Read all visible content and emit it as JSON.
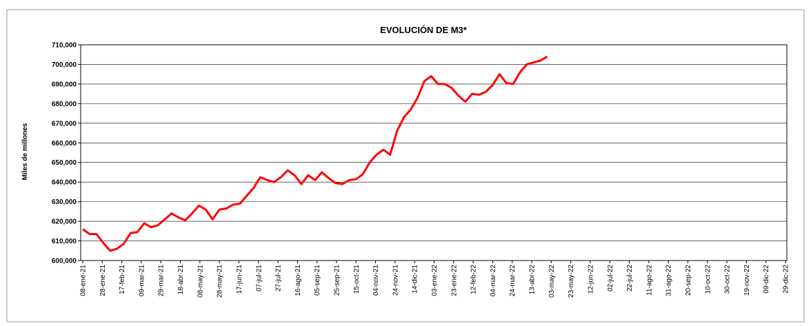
{
  "chart_data": {
    "type": "line",
    "title": "EVOLUCIÓN  DE M3*",
    "y_label": "Miles de millones",
    "x": [
      "2021-01-08",
      "2021-01-15",
      "2021-01-22",
      "2021-01-29",
      "2021-02-05",
      "2021-02-12",
      "2021-02-19",
      "2021-02-26",
      "2021-03-05",
      "2021-03-12",
      "2021-03-19",
      "2021-03-26",
      "2021-04-02",
      "2021-04-09",
      "2021-04-16",
      "2021-04-23",
      "2021-04-30",
      "2021-05-07",
      "2021-05-14",
      "2021-05-21",
      "2021-05-28",
      "2021-06-04",
      "2021-06-11",
      "2021-06-18",
      "2021-06-25",
      "2021-07-02",
      "2021-07-09",
      "2021-07-16",
      "2021-07-23",
      "2021-07-30",
      "2021-08-06",
      "2021-08-13",
      "2021-08-20",
      "2021-08-27",
      "2021-09-03",
      "2021-09-10",
      "2021-09-17",
      "2021-09-24",
      "2021-10-01",
      "2021-10-08",
      "2021-10-15",
      "2021-10-22",
      "2021-10-29",
      "2021-11-05",
      "2021-11-12",
      "2021-11-19",
      "2021-11-26",
      "2021-12-03",
      "2021-12-10",
      "2021-12-17",
      "2021-12-24",
      "2021-12-31",
      "2022-01-07",
      "2022-01-14",
      "2022-01-21",
      "2022-01-28",
      "2022-02-04",
      "2022-02-11",
      "2022-02-18",
      "2022-02-25",
      "2022-03-04",
      "2022-03-11",
      "2022-03-18",
      "2022-03-25",
      "2022-04-01",
      "2022-04-08",
      "2022-04-15",
      "2022-04-22",
      "2022-04-29"
    ],
    "series": [
      {
        "name": "M3",
        "color": "#ff0000",
        "values": [
          616000,
          613500,
          613500,
          609000,
          605000,
          606000,
          608500,
          614000,
          614500,
          619000,
          617000,
          618000,
          621000,
          624000,
          622000,
          620500,
          624000,
          628000,
          626000,
          621000,
          626000,
          626500,
          628500,
          629000,
          633000,
          637000,
          642500,
          641000,
          640000,
          642500,
          646000,
          643500,
          639000,
          643500,
          641000,
          645000,
          642000,
          639500,
          639000,
          641000,
          641500,
          644000,
          650000,
          654000,
          656500,
          654000,
          666000,
          673000,
          677000,
          683000,
          691500,
          694000,
          690000,
          690000,
          688000,
          684000,
          681000,
          685000,
          684500,
          686000,
          689500,
          695000,
          690500,
          690000,
          696000,
          700000,
          701000,
          702000,
          704000
        ]
      }
    ],
    "xlim": [
      "2021-01-08",
      "2022-12-29"
    ],
    "xticks": [
      {
        "value": "2021-01-08",
        "label": "08-ene-21"
      },
      {
        "value": "2021-01-28",
        "label": "28-ene-21"
      },
      {
        "value": "2021-02-17",
        "label": "17-feb-21"
      },
      {
        "value": "2021-03-09",
        "label": "09-mar-21"
      },
      {
        "value": "2021-03-29",
        "label": "29-mar-21"
      },
      {
        "value": "2021-04-18",
        "label": "18-abr-21"
      },
      {
        "value": "2021-05-08",
        "label": "08-may-21"
      },
      {
        "value": "2021-05-28",
        "label": "28-may-21"
      },
      {
        "value": "2021-06-17",
        "label": "17-jun-21"
      },
      {
        "value": "2021-07-07",
        "label": "07-jul-21"
      },
      {
        "value": "2021-07-27",
        "label": "27-jul-21"
      },
      {
        "value": "2021-08-16",
        "label": "16-ago-21"
      },
      {
        "value": "2021-09-05",
        "label": "05-sep-21"
      },
      {
        "value": "2021-09-25",
        "label": "25-sep-21"
      },
      {
        "value": "2021-10-15",
        "label": "15-oct-21"
      },
      {
        "value": "2021-11-04",
        "label": "04-nov-21"
      },
      {
        "value": "2021-11-24",
        "label": "24-nov-21"
      },
      {
        "value": "2021-12-14",
        "label": "14-dic-21"
      },
      {
        "value": "2022-01-03",
        "label": "03-ene-22"
      },
      {
        "value": "2022-01-23",
        "label": "23-ene-22"
      },
      {
        "value": "2022-02-12",
        "label": "12-feb-22"
      },
      {
        "value": "2022-03-04",
        "label": "04-mar-22"
      },
      {
        "value": "2022-03-24",
        "label": "24-mar-22"
      },
      {
        "value": "2022-04-13",
        "label": "13-abr-22"
      },
      {
        "value": "2022-05-03",
        "label": "03-may-22"
      },
      {
        "value": "2022-05-23",
        "label": "23-may-22"
      },
      {
        "value": "2022-06-12",
        "label": "12-jun-22"
      },
      {
        "value": "2022-07-02",
        "label": "02-jul-22"
      },
      {
        "value": "2022-07-22",
        "label": "22-jul-22"
      },
      {
        "value": "2022-08-11",
        "label": "11-ago-22"
      },
      {
        "value": "2022-08-31",
        "label": "31-ago-22"
      },
      {
        "value": "2022-09-20",
        "label": "20-sep-22"
      },
      {
        "value": "2022-10-10",
        "label": "10-oct-22"
      },
      {
        "value": "2022-10-30",
        "label": "30-oct-22"
      },
      {
        "value": "2022-11-19",
        "label": "19-nov-22"
      },
      {
        "value": "2022-12-09",
        "label": "09-dic-22"
      },
      {
        "value": "2022-12-29",
        "label": "29-dic-22"
      }
    ],
    "ylim": [
      600000,
      710000
    ],
    "yticks": [
      {
        "value": 600000,
        "label": "600,000"
      },
      {
        "value": 610000,
        "label": "610,000"
      },
      {
        "value": 620000,
        "label": "620,000"
      },
      {
        "value": 630000,
        "label": "630,000"
      },
      {
        "value": 640000,
        "label": "640,000"
      },
      {
        "value": 650000,
        "label": "650,000"
      },
      {
        "value": 660000,
        "label": "660,000"
      },
      {
        "value": 670000,
        "label": "670,000"
      },
      {
        "value": 680000,
        "label": "680,000"
      },
      {
        "value": 690000,
        "label": "690,000"
      },
      {
        "value": 700000,
        "label": "700,000"
      },
      {
        "value": 710000,
        "label": "710,000"
      }
    ],
    "grid": true
  }
}
